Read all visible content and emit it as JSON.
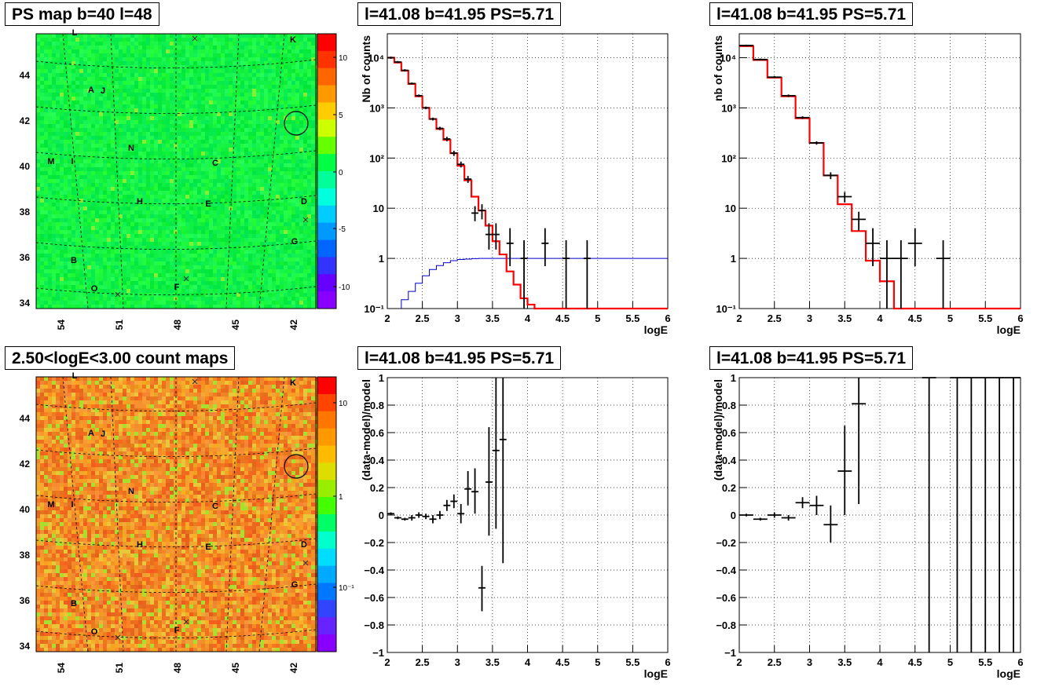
{
  "panels": {
    "ps_map_title": "PS map b=40 l=48",
    "count_map_title": "2.50<logE<3.00 count maps",
    "spectrum_title_1": "l=41.08 b=41.95 PS=5.71",
    "spectrum_title_2": "l=41.08 b=41.95 PS=5.71",
    "residual_title_1": "l=41.08 b=41.95 PS=5.71",
    "residual_title_2": "l=41.08 b=41.95 PS=5.71"
  },
  "colors": {
    "data": "#000000",
    "model": "#ff0000",
    "background_model": "#0000cc",
    "map_green": "#00ff44",
    "map_orange": "#f0a030"
  },
  "maps": {
    "y_ticks": [
      "44",
      "42",
      "40",
      "38",
      "36",
      "34"
    ],
    "x_ticks": [
      "54",
      "51",
      "48",
      "45",
      "42"
    ],
    "source_labels": [
      {
        "t": "L"
      },
      {
        "t": "K"
      },
      {
        "t": "A"
      },
      {
        "t": "J"
      },
      {
        "t": "N"
      },
      {
        "t": "M"
      },
      {
        "t": "I"
      },
      {
        "t": "C"
      },
      {
        "t": "H"
      },
      {
        "t": "E"
      },
      {
        "t": "D"
      },
      {
        "t": "G"
      },
      {
        "t": "B"
      },
      {
        "t": "O"
      },
      {
        "t": "F"
      }
    ],
    "ps_colorbar": {
      "labels": [
        "10",
        "5",
        "0",
        "-5",
        "-10"
      ]
    },
    "count_colorbar": {
      "labels": [
        "10",
        "1",
        "10⁻¹"
      ]
    }
  },
  "chart_data": [
    {
      "type": "line",
      "title": "l=41.08 b=41.95 PS=5.71",
      "xlabel": "logE",
      "ylabel": "Nb of counts",
      "xlim": [
        2,
        6
      ],
      "ylim": [
        0.1,
        30000
      ],
      "yscale": "log",
      "grid": true,
      "x_ticks": [
        "2",
        "2.5",
        "3",
        "3.5",
        "4",
        "4.5",
        "5",
        "5.5",
        "6"
      ],
      "y_ticks": [
        "10⁻¹",
        "1",
        "10",
        "10²",
        "10³",
        "10⁴"
      ],
      "model_step": {
        "edges": [
          2,
          2.1,
          2.2,
          2.3,
          2.4,
          2.5,
          2.6,
          2.7,
          2.8,
          2.9,
          3.0,
          3.1,
          3.2,
          3.3,
          3.4,
          3.5,
          3.6,
          3.7,
          3.8,
          3.9,
          4.0,
          4.1,
          4.2,
          6.0
        ],
        "values": [
          10000,
          8000,
          5500,
          3000,
          1700,
          1000,
          600,
          380,
          230,
          125,
          70,
          36,
          17,
          9,
          4.5,
          2.2,
          1.2,
          0.55,
          0.3,
          0.16,
          0.12,
          0.1,
          0.1
        ]
      },
      "background_step": {
        "edges": [
          2.2,
          2.3,
          2.4,
          2.5,
          2.6,
          2.7,
          2.8,
          2.9,
          3.0,
          3.1,
          3.2,
          3.3,
          3.4,
          3.5,
          6.0
        ],
        "values": [
          0.15,
          0.22,
          0.32,
          0.45,
          0.6,
          0.72,
          0.82,
          0.9,
          0.95,
          0.97,
          0.99,
          1.0,
          1.0,
          1.0
        ]
      },
      "points": [
        {
          "x": 2.05,
          "y": 10000,
          "lo": 9500,
          "hi": 10500
        },
        {
          "x": 2.15,
          "y": 8200,
          "lo": 7800,
          "hi": 8600
        },
        {
          "x": 2.25,
          "y": 5600,
          "lo": 5300,
          "hi": 5900
        },
        {
          "x": 2.35,
          "y": 3050,
          "lo": 2900,
          "hi": 3200
        },
        {
          "x": 2.45,
          "y": 1750,
          "lo": 1650,
          "hi": 1850
        },
        {
          "x": 2.55,
          "y": 1000,
          "lo": 940,
          "hi": 1060
        },
        {
          "x": 2.65,
          "y": 600,
          "lo": 560,
          "hi": 640
        },
        {
          "x": 2.75,
          "y": 390,
          "lo": 360,
          "hi": 420
        },
        {
          "x": 2.85,
          "y": 240,
          "lo": 215,
          "hi": 265
        },
        {
          "x": 2.95,
          "y": 125,
          "lo": 110,
          "hi": 140
        },
        {
          "x": 3.05,
          "y": 75,
          "lo": 65,
          "hi": 85
        },
        {
          "x": 3.15,
          "y": 38,
          "lo": 32,
          "hi": 44
        },
        {
          "x": 3.25,
          "y": 8,
          "lo": 5.5,
          "hi": 11
        },
        {
          "x": 3.35,
          "y": 9,
          "lo": 6,
          "hi": 12
        },
        {
          "x": 3.45,
          "y": 3,
          "lo": 1.5,
          "hi": 5
        },
        {
          "x": 3.55,
          "y": 3,
          "lo": 1.5,
          "hi": 5
        },
        {
          "x": 3.75,
          "y": 2,
          "lo": 0.7,
          "hi": 4
        },
        {
          "x": 3.95,
          "y": 1,
          "lo": 0.1,
          "hi": 2.3
        },
        {
          "x": 4.25,
          "y": 2,
          "lo": 0.7,
          "hi": 4
        },
        {
          "x": 4.55,
          "y": 1,
          "lo": 0.1,
          "hi": 2.3
        },
        {
          "x": 4.85,
          "y": 1,
          "lo": 0.1,
          "hi": 2.3
        }
      ]
    },
    {
      "type": "line",
      "title": "l=41.08 b=41.95 PS=5.71",
      "xlabel": "logE",
      "ylabel": "nb of counts",
      "xlim": [
        2,
        6
      ],
      "ylim": [
        0.1,
        30000
      ],
      "yscale": "log",
      "grid": true,
      "x_ticks": [
        "2",
        "2.5",
        "3",
        "3.5",
        "4",
        "4.5",
        "5",
        "5.5",
        "6"
      ],
      "y_ticks": [
        "10⁻¹",
        "1",
        "10",
        "10²",
        "10³",
        "10⁴"
      ],
      "model_step": {
        "edges": [
          2,
          2.2,
          2.4,
          2.6,
          2.8,
          3.0,
          3.2,
          3.4,
          3.6,
          3.8,
          4.0,
          4.2,
          6.0
        ],
        "values": [
          17000,
          9000,
          4000,
          1700,
          620,
          200,
          45,
          12,
          3.5,
          0.9,
          0.35,
          0.1
        ]
      },
      "points": [
        {
          "x": 2.1,
          "y": 17500,
          "lo": 16800,
          "hi": 18200
        },
        {
          "x": 2.3,
          "y": 9200,
          "lo": 8800,
          "hi": 9600
        },
        {
          "x": 2.5,
          "y": 4100,
          "lo": 3900,
          "hi": 4300
        },
        {
          "x": 2.7,
          "y": 1750,
          "lo": 1650,
          "hi": 1850
        },
        {
          "x": 2.9,
          "y": 640,
          "lo": 600,
          "hi": 680
        },
        {
          "x": 3.1,
          "y": 200,
          "lo": 185,
          "hi": 215
        },
        {
          "x": 3.3,
          "y": 45,
          "lo": 38,
          "hi": 52
        },
        {
          "x": 3.5,
          "y": 17,
          "lo": 13,
          "hi": 21
        },
        {
          "x": 3.7,
          "y": 6,
          "lo": 3.6,
          "hi": 8.5
        },
        {
          "x": 3.9,
          "y": 2,
          "lo": 0.7,
          "hi": 4
        },
        {
          "x": 4.1,
          "y": 1,
          "lo": 0.1,
          "hi": 2.3
        },
        {
          "x": 4.3,
          "y": 1,
          "lo": 0.1,
          "hi": 2.3
        },
        {
          "x": 4.5,
          "y": 2,
          "lo": 0.7,
          "hi": 4
        },
        {
          "x": 4.9,
          "y": 1,
          "lo": 0.1,
          "hi": 2.3
        }
      ]
    },
    {
      "type": "scatter",
      "title": "l=41.08 b=41.95 PS=5.71",
      "xlabel": "logE",
      "ylabel": "(data-model)/model",
      "xlim": [
        2,
        6
      ],
      "ylim": [
        -1,
        1
      ],
      "grid": true,
      "x_ticks": [
        "2",
        "2.5",
        "3",
        "3.5",
        "4",
        "4.5",
        "5",
        "5.5",
        "6"
      ],
      "y_ticks": [
        "−1",
        "−0.8",
        "−0.6",
        "−0.4",
        "−0.2",
        "0",
        "0.2",
        "0.4",
        "0.6",
        "0.8",
        "1"
      ],
      "points": [
        {
          "x": 2.05,
          "y": 0.01,
          "lo": 0.0,
          "hi": 0.02
        },
        {
          "x": 2.15,
          "y": -0.02,
          "lo": -0.03,
          "hi": -0.01
        },
        {
          "x": 2.25,
          "y": -0.03,
          "lo": -0.04,
          "hi": -0.02
        },
        {
          "x": 2.35,
          "y": -0.02,
          "lo": -0.04,
          "hi": 0.0
        },
        {
          "x": 2.45,
          "y": 0.0,
          "lo": -0.02,
          "hi": 0.02
        },
        {
          "x": 2.55,
          "y": -0.01,
          "lo": -0.03,
          "hi": 0.01
        },
        {
          "x": 2.65,
          "y": -0.03,
          "lo": -0.06,
          "hi": 0.0
        },
        {
          "x": 2.75,
          "y": 0.0,
          "lo": -0.03,
          "hi": 0.03
        },
        {
          "x": 2.85,
          "y": 0.07,
          "lo": 0.03,
          "hi": 0.11
        },
        {
          "x": 2.95,
          "y": 0.1,
          "lo": 0.05,
          "hi": 0.15
        },
        {
          "x": 3.05,
          "y": 0.01,
          "lo": -0.06,
          "hi": 0.08
        },
        {
          "x": 3.15,
          "y": 0.19,
          "lo": 0.07,
          "hi": 0.32
        },
        {
          "x": 3.25,
          "y": 0.17,
          "lo": 0.01,
          "hi": 0.34
        },
        {
          "x": 3.35,
          "y": -0.53,
          "lo": -0.7,
          "hi": -0.37
        },
        {
          "x": 3.45,
          "y": 0.24,
          "lo": -0.15,
          "hi": 0.64
        },
        {
          "x": 3.55,
          "y": 0.47,
          "lo": -0.1,
          "hi": 1.0
        },
        {
          "x": 3.65,
          "y": 0.55,
          "lo": -0.35,
          "hi": 1.0
        }
      ]
    },
    {
      "type": "scatter",
      "title": "l=41.08 b=41.95 PS=5.71",
      "xlabel": "logE",
      "ylabel": "(data-model)/model",
      "xlim": [
        2,
        6
      ],
      "ylim": [
        -1,
        1
      ],
      "grid": true,
      "x_ticks": [
        "2",
        "2.5",
        "3",
        "3.5",
        "4",
        "4.5",
        "5",
        "5.5",
        "6"
      ],
      "y_ticks": [
        "−1",
        "−0.8",
        "−0.6",
        "−0.4",
        "−0.2",
        "0",
        "0.2",
        "0.4",
        "0.6",
        "0.8",
        "1"
      ],
      "points": [
        {
          "x": 2.1,
          "y": 0.0,
          "lo": -0.01,
          "hi": 0.01
        },
        {
          "x": 2.3,
          "y": -0.03,
          "lo": -0.04,
          "hi": -0.02
        },
        {
          "x": 2.5,
          "y": 0.0,
          "lo": -0.02,
          "hi": 0.02
        },
        {
          "x": 2.7,
          "y": -0.02,
          "lo": -0.04,
          "hi": 0.0
        },
        {
          "x": 2.9,
          "y": 0.09,
          "lo": 0.05,
          "hi": 0.13
        },
        {
          "x": 3.1,
          "y": 0.07,
          "lo": 0.0,
          "hi": 0.14
        },
        {
          "x": 3.3,
          "y": -0.07,
          "lo": -0.2,
          "hi": 0.07
        },
        {
          "x": 3.5,
          "y": 0.32,
          "lo": 0.0,
          "hi": 0.65
        },
        {
          "x": 3.7,
          "y": 0.81,
          "lo": 0.08,
          "hi": 1.0
        },
        {
          "x": 4.7,
          "y": 1.0,
          "lo": -1.0,
          "hi": 1.0
        },
        {
          "x": 5.1,
          "y": 1.0,
          "lo": -1.0,
          "hi": 1.0
        },
        {
          "x": 5.3,
          "y": 1.0,
          "lo": -1.0,
          "hi": 1.0
        },
        {
          "x": 5.5,
          "y": 1.0,
          "lo": -1.0,
          "hi": 1.0
        },
        {
          "x": 5.7,
          "y": 1.0,
          "lo": -1.0,
          "hi": 1.0
        },
        {
          "x": 5.9,
          "y": 1.0,
          "lo": -1.0,
          "hi": 1.0
        }
      ]
    }
  ]
}
